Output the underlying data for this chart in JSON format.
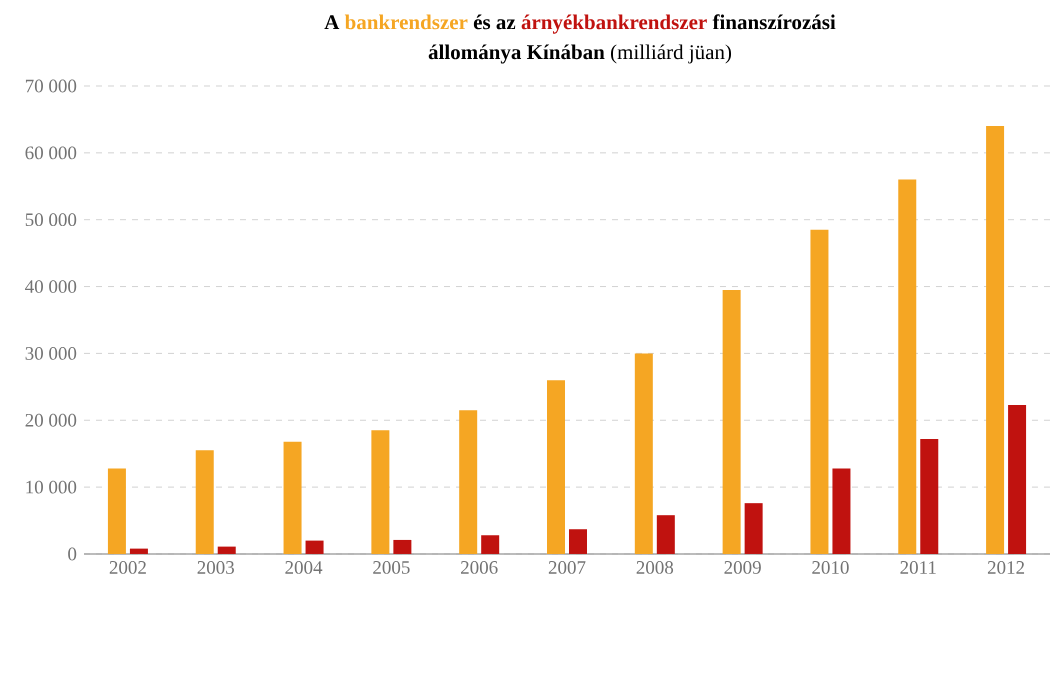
{
  "chart_data": {
    "type": "bar",
    "title": "A",
    "subtitle": "(milliárd jüan)",
    "annotations": [
      "és az",
      "finanszírozási",
      "állománya Kínában"
    ],
    "categories": [
      "2002",
      "2003",
      "2004",
      "2005",
      "2006",
      "2007",
      "2008",
      "2009",
      "2010",
      "2011",
      "2012"
    ],
    "series": [
      {
        "name": "bankrendszer",
        "color": "#f5a623",
        "values": [
          12800,
          15500,
          16800,
          18500,
          21500,
          26000,
          30000,
          39500,
          48500,
          56000,
          64000
        ]
      },
      {
        "name": "árnyékbankrendszer",
        "color": "#c0120f",
        "values": [
          800,
          1100,
          2000,
          2100,
          2800,
          3700,
          5800,
          7600,
          12800,
          17200,
          22300
        ]
      }
    ],
    "ylim": [
      0,
      70000
    ],
    "yticks": [
      0,
      {
        "value": 10000,
        "label": "10 000"
      },
      {
        "value": 20000,
        "label": "20 000"
      },
      {
        "value": 30000,
        "label": "30 000"
      },
      {
        "value": 40000,
        "label": "40 000"
      },
      {
        "value": 50000,
        "label": "50 000"
      },
      {
        "value": 60000,
        "label": "60 000"
      },
      {
        "value": 70000,
        "label": "70 000"
      }
    ],
    "grid": "y"
  }
}
